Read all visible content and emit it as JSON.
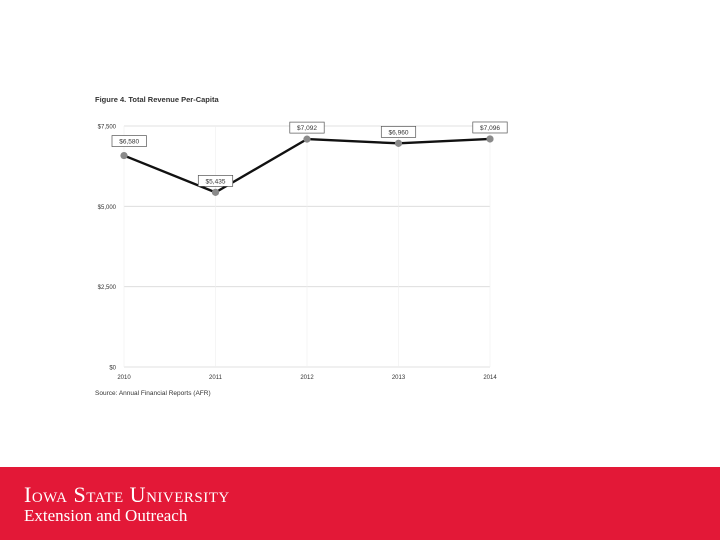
{
  "theme": {
    "footer_color": "#e31837",
    "line_color": "#111111",
    "marker_color": "#8a8a8a",
    "grid_color": "#d9d9d9",
    "label_box_border": "#555555",
    "text_color": "#333333"
  },
  "footer": {
    "university": "Iowa State University",
    "unit": "Extension and Outreach"
  },
  "chart_data": {
    "type": "line",
    "title": "Figure 4. Total Revenue Per-Capita",
    "source": "Source: Annual Financial Reports (AFR)",
    "categories": [
      "2010",
      "2011",
      "2012",
      "2013",
      "2014"
    ],
    "series": [
      {
        "values": [
          6580,
          5435,
          7092,
          6960,
          7096
        ],
        "labels": [
          "$6,580",
          "$5,435",
          "$7,092",
          "$6,960",
          "$7,096"
        ]
      }
    ],
    "ylim": [
      0,
      7500
    ],
    "yticks": [
      0,
      2500,
      5000,
      7500
    ],
    "ytick_labels": [
      "$0",
      "$2,500",
      "$5,000",
      "$7,500"
    ],
    "grid": true,
    "legend": false
  }
}
